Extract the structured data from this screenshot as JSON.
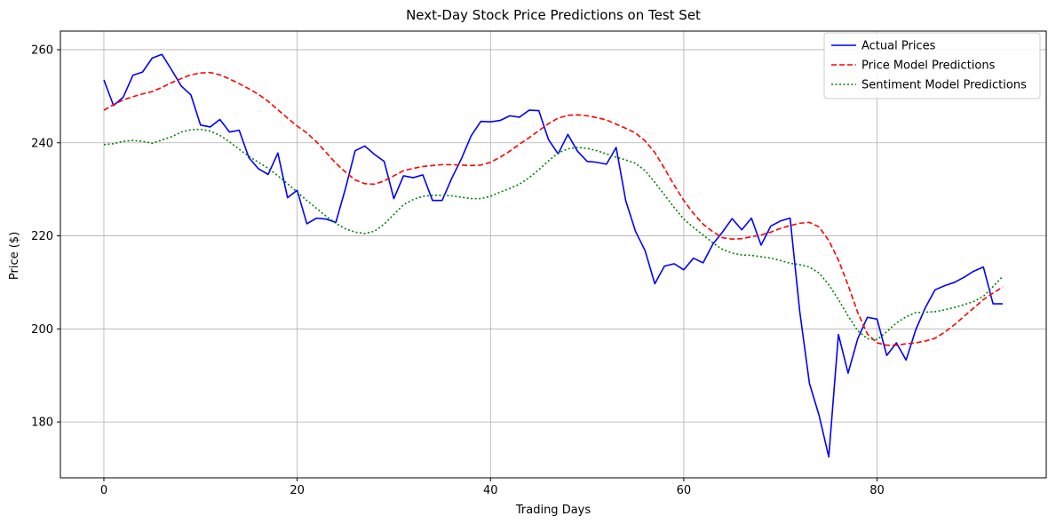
{
  "chart_data": {
    "type": "line",
    "title": "Next-Day Stock Price Predictions on Test Set",
    "xlabel": "Trading Days",
    "ylabel": "Price ($)",
    "xlim": [
      -4.5,
      97.5
    ],
    "ylim": [
      168,
      264
    ],
    "xticks": [
      0,
      20,
      40,
      60,
      80
    ],
    "yticks": [
      180,
      200,
      220,
      240,
      260
    ],
    "grid": true,
    "legend_position": "top-right",
    "series": [
      {
        "name": "Actual Prices",
        "color": "#0000ff",
        "style": "solid",
        "x": [
          0,
          1,
          2,
          3,
          4,
          5,
          6,
          7,
          8,
          9,
          10,
          11,
          12,
          13,
          14,
          15,
          16,
          17,
          18,
          19,
          20,
          21,
          22,
          23,
          24,
          25,
          26,
          27,
          28,
          29,
          30,
          31,
          32,
          33,
          34,
          35,
          36,
          37,
          38,
          39,
          40,
          41,
          42,
          43,
          44,
          45,
          46,
          47,
          48,
          49,
          50,
          51,
          52,
          53,
          54,
          55,
          56,
          57,
          58,
          59,
          60,
          61,
          62,
          63,
          64,
          65,
          66,
          67,
          68,
          69,
          70,
          71,
          72,
          73,
          74,
          75,
          76,
          77,
          78,
          79,
          80,
          81,
          82,
          83,
          84,
          85,
          86,
          87,
          88,
          89,
          90,
          91,
          92,
          93
        ],
        "values": [
          253.5,
          248.0,
          249.8,
          254.5,
          255.2,
          258.2,
          259.0,
          255.7,
          252.2,
          250.3,
          243.8,
          243.4,
          245.0,
          242.3,
          242.7,
          236.8,
          234.4,
          233.2,
          237.8,
          228.2,
          229.8,
          222.6,
          223.8,
          223.6,
          222.9,
          230.2,
          238.3,
          239.3,
          237.5,
          236.0,
          228.0,
          232.9,
          232.5,
          233.1,
          227.6,
          227.6,
          232.4,
          236.6,
          241.5,
          244.6,
          244.5,
          244.8,
          245.8,
          245.5,
          247.0,
          246.9,
          240.7,
          237.6,
          241.8,
          238.2,
          236.0,
          235.8,
          235.4,
          239.0,
          227.5,
          221.0,
          216.8,
          209.7,
          213.5,
          214.0,
          212.7,
          215.2,
          214.2,
          218.2,
          220.8,
          223.7,
          221.3,
          223.8,
          218.0,
          222.1,
          223.2,
          223.8,
          203.7,
          188.3,
          181.4,
          172.5,
          198.8,
          190.5,
          197.9,
          202.5,
          202.1,
          194.3,
          197.0,
          193.3,
          199.8,
          204.6,
          208.4,
          209.3,
          210.0,
          211.1,
          212.4,
          213.3,
          205.4,
          205.4
        ]
      },
      {
        "name": "Price Model Predictions",
        "color": "#ff0000",
        "style": "dashed",
        "x": [
          0,
          1,
          2,
          3,
          4,
          5,
          6,
          7,
          8,
          9,
          10,
          11,
          12,
          13,
          14,
          15,
          16,
          17,
          18,
          19,
          20,
          21,
          22,
          23,
          24,
          25,
          26,
          27,
          28,
          29,
          30,
          31,
          32,
          33,
          34,
          35,
          36,
          37,
          38,
          39,
          40,
          41,
          42,
          43,
          44,
          45,
          46,
          47,
          48,
          49,
          50,
          51,
          52,
          53,
          54,
          55,
          56,
          57,
          58,
          59,
          60,
          61,
          62,
          63,
          64,
          65,
          66,
          67,
          68,
          69,
          70,
          71,
          72,
          73,
          74,
          75,
          76,
          77,
          78,
          79,
          80,
          81,
          82,
          83,
          84,
          85,
          86,
          87,
          88,
          89,
          90,
          91,
          92,
          93
        ],
        "values": [
          247.0,
          248.2,
          249.2,
          249.9,
          250.5,
          251.0,
          251.9,
          252.9,
          253.8,
          254.6,
          255.0,
          255.1,
          254.6,
          253.7,
          252.7,
          251.6,
          250.4,
          248.9,
          247.1,
          245.3,
          243.6,
          242.1,
          240.2,
          237.9,
          235.6,
          233.7,
          232.0,
          231.2,
          231.1,
          231.8,
          232.9,
          234.0,
          234.5,
          234.9,
          235.1,
          235.3,
          235.3,
          235.2,
          235.1,
          235.2,
          235.8,
          236.9,
          238.2,
          239.7,
          241.1,
          242.6,
          244.1,
          245.3,
          245.9,
          246.0,
          245.8,
          245.4,
          244.9,
          244.0,
          243.1,
          242.1,
          240.4,
          237.9,
          234.5,
          230.9,
          227.6,
          224.8,
          222.5,
          220.9,
          219.6,
          219.3,
          219.4,
          219.8,
          220.2,
          220.8,
          221.6,
          222.2,
          222.7,
          222.9,
          221.9,
          219.0,
          214.8,
          209.4,
          203.5,
          198.9,
          197.0,
          196.5,
          196.5,
          196.8,
          197.0,
          197.4,
          198.0,
          199.3,
          200.9,
          202.7,
          204.5,
          206.3,
          207.7,
          209.0
        ]
      },
      {
        "name": "Sentiment Model Predictions",
        "color": "#008000",
        "style": "dotted",
        "x": [
          0,
          1,
          2,
          3,
          4,
          5,
          6,
          7,
          8,
          9,
          10,
          11,
          12,
          13,
          14,
          15,
          16,
          17,
          18,
          19,
          20,
          21,
          22,
          23,
          24,
          25,
          26,
          27,
          28,
          29,
          30,
          31,
          32,
          33,
          34,
          35,
          36,
          37,
          38,
          39,
          40,
          41,
          42,
          43,
          44,
          45,
          46,
          47,
          48,
          49,
          50,
          51,
          52,
          53,
          54,
          55,
          56,
          57,
          58,
          59,
          60,
          61,
          62,
          63,
          64,
          65,
          66,
          67,
          68,
          69,
          70,
          71,
          72,
          73,
          74,
          75,
          76,
          77,
          78,
          79,
          80,
          81,
          82,
          83,
          84,
          85,
          86,
          87,
          88,
          89,
          90,
          91,
          92,
          93
        ],
        "values": [
          239.6,
          239.8,
          240.3,
          240.5,
          240.3,
          239.9,
          240.6,
          241.3,
          242.3,
          242.8,
          242.9,
          242.5,
          241.6,
          240.2,
          238.6,
          237.1,
          235.8,
          234.5,
          232.9,
          231.2,
          229.4,
          227.6,
          225.9,
          224.2,
          222.7,
          221.5,
          220.8,
          220.5,
          221.0,
          222.5,
          224.6,
          226.7,
          227.8,
          228.5,
          228.7,
          228.7,
          228.6,
          228.3,
          228.0,
          228.0,
          228.5,
          229.4,
          230.2,
          231.1,
          232.5,
          234.2,
          236.1,
          237.8,
          238.7,
          239.0,
          238.8,
          238.3,
          237.6,
          236.9,
          236.3,
          235.6,
          234.0,
          231.5,
          228.8,
          226.1,
          223.6,
          221.8,
          220.2,
          218.5,
          217.1,
          216.3,
          215.9,
          215.8,
          215.5,
          215.2,
          214.7,
          214.1,
          213.8,
          213.3,
          212.0,
          209.5,
          206.3,
          202.8,
          199.6,
          197.9,
          197.7,
          199.4,
          201.3,
          202.6,
          203.5,
          203.6,
          203.7,
          204.1,
          204.6,
          205.2,
          205.9,
          207.0,
          209.1,
          211.3
        ]
      }
    ]
  }
}
